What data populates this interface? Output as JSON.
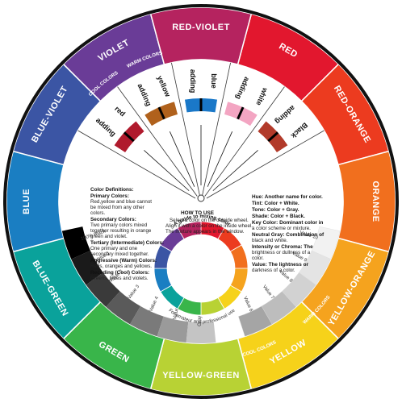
{
  "wheel": {
    "outer_segments": [
      {
        "label": "RED",
        "color": "#e2172e"
      },
      {
        "label": "RED-ORANGE",
        "color": "#ec3b1f"
      },
      {
        "label": "ORANGE",
        "color": "#f16f1e"
      },
      {
        "label": "YELLOW-ORANGE",
        "color": "#f5a31e"
      },
      {
        "label": "YELLOW",
        "color": "#f6d21a"
      },
      {
        "label": "YELLOW-GREEN",
        "color": "#b8d234"
      },
      {
        "label": "GREEN",
        "color": "#39b54a"
      },
      {
        "label": "BLUE-GREEN",
        "color": "#0aa29b"
      },
      {
        "label": "BLUE",
        "color": "#1a7ec2"
      },
      {
        "label": "BLUE-VIOLET",
        "color": "#3b55a4"
      },
      {
        "label": "VIOLET",
        "color": "#6a3c97"
      },
      {
        "label": "RED-VIOLET",
        "color": "#b5235f"
      }
    ],
    "warm_colors_top": "WARM COLORS",
    "cool_colors_top": "COOL COLORS",
    "warm_colors_bottom": "WARM COLORS",
    "cool_colors_bottom": "COOL COLORS",
    "adding_top": [
      {
        "word": "adding",
        "color": "red",
        "swatch": "#b01a2d"
      },
      {
        "word": "adding",
        "color": "yellow",
        "swatch": "#b0611c"
      },
      {
        "word": "adding",
        "color": "blue",
        "swatch": "#1a78c8"
      },
      {
        "word": "adding",
        "color": "white",
        "swatch": "#f3a5c2"
      },
      {
        "word": "adding",
        "color": "Black",
        "swatch": "#b23a2a"
      }
    ],
    "value_labels_left": [
      "100% Black",
      "Value 1",
      "Value 2",
      "Value 3",
      "Value 4",
      "Value 5",
      "Gray Scale"
    ],
    "value_labels_right": [
      "Value 10",
      "Value 9",
      "Value 8",
      "Value 7",
      "Value 6"
    ],
    "definitions_left": {
      "heading": "Color Definitions:",
      "items": [
        {
          "term": "Primary Colors:",
          "text": "Red,yellow and blue cannot be mixed from any other colors."
        },
        {
          "term": "Secondary Colors:",
          "text": "Two primary colors mixed together resulting in orange green and violet."
        },
        {
          "term": "Tertiary (Intermediate) Colors:",
          "text": "One primary and one secondary mixed together."
        },
        {
          "term": "Aggressive (Warm) Colors:",
          "text": "Reds, oranges and yellows."
        },
        {
          "term": "Receding (Cool) Colors:",
          "text": "Greens, blues and violets."
        }
      ]
    },
    "definitions_right": [
      {
        "term": "Hue:",
        "text": "Another name for color."
      },
      {
        "term": "Tint:",
        "text": "Color + White."
      },
      {
        "term": "Tone:",
        "text": "Color + Gray."
      },
      {
        "term": "Shade:",
        "text": "Color + Black."
      },
      {
        "term": "Key Color:",
        "text": "Dominant color in a color scheme or mixture."
      },
      {
        "term": "Neutral Gray:",
        "text": "Combination of black and white."
      },
      {
        "term": "Intensity or Chroma:",
        "text": "The brightness or dullness of a color."
      },
      {
        "term": "Value:",
        "text": "The lightness or darkness of a color."
      }
    ],
    "how_to_use": {
      "title": "HOW TO USE",
      "line1": "Select a color on the outside wheel.",
      "line2": "Align it with a color on the inside wheel.",
      "line3": "The mixture appears in the window."
    },
    "inner_title": "A guide to mixing color",
    "inner_subtitle": "For amateur and professional use"
  }
}
